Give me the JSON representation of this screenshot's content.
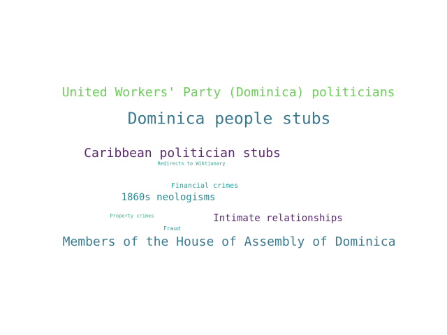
{
  "words": [
    {
      "id": "uwp",
      "text": "United Workers' Party (Dominica) politicians",
      "color": "#6cce59"
    },
    {
      "id": "dps",
      "text": "Dominica people stubs",
      "color": "#3b7a8e"
    },
    {
      "id": "cps",
      "text": "Caribbean politician stubs",
      "color": "#5a2a6e"
    },
    {
      "id": "rtw",
      "text": "Redirects to Wiktionary",
      "color": "#2a9e8a"
    },
    {
      "id": "fin",
      "text": "Financial crimes",
      "color": "#2a9e9a"
    },
    {
      "id": "neo",
      "text": "1860s neologisms",
      "color": "#2a8a92"
    },
    {
      "id": "prop",
      "text": "Property crimes",
      "color": "#38b27a"
    },
    {
      "id": "int",
      "text": "Intimate relationships",
      "color": "#5a2a6e"
    },
    {
      "id": "fraud",
      "text": "Fraud",
      "color": "#2a9e9a"
    },
    {
      "id": "mem",
      "text": "Members of the House of Assembly of Dominica",
      "color": "#3b7a8e"
    }
  ]
}
